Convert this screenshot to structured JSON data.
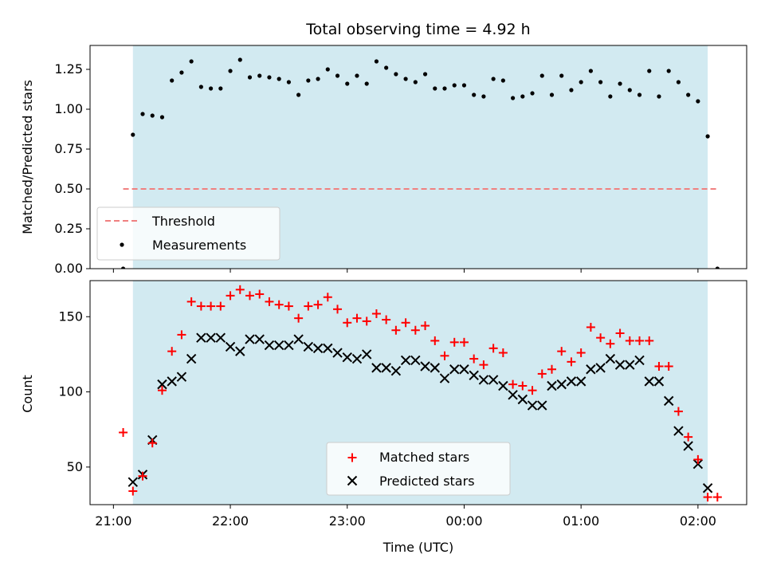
{
  "chart_data": [
    {
      "type": "scatter",
      "title": "Total observing time = 4.92 h",
      "xlabel": "",
      "ylabel": "Matched/Predicted stars",
      "ylim": [
        0,
        1.4
      ],
      "yticks": [
        "0.00",
        "0.25",
        "0.50",
        "0.75",
        "1.00",
        "1.25"
      ],
      "ytick_values": [
        0,
        0.25,
        0.5,
        0.75,
        1.0,
        1.25
      ],
      "xlim": [
        "20:48",
        "02:25"
      ],
      "shaded_span": [
        "21:10",
        "02:05"
      ],
      "shaded_color": "#add8e6",
      "legend_position": "lower-left",
      "series": [
        {
          "name": "Threshold",
          "kind": "dashed-line",
          "color": "#f08080",
          "x": [
            "21:05",
            "02:10"
          ],
          "y": [
            0.5,
            0.5
          ]
        },
        {
          "name": "Measurements",
          "kind": "dots",
          "color": "#000000",
          "x": [
            "21:05",
            "21:10",
            "21:15",
            "21:20",
            "21:25",
            "21:30",
            "21:35",
            "21:40",
            "21:45",
            "21:50",
            "21:55",
            "22:00",
            "22:05",
            "22:10",
            "22:15",
            "22:20",
            "22:25",
            "22:30",
            "22:35",
            "22:40",
            "22:45",
            "22:50",
            "22:55",
            "23:00",
            "23:05",
            "23:10",
            "23:15",
            "23:20",
            "23:25",
            "23:30",
            "23:35",
            "23:40",
            "23:45",
            "23:50",
            "23:55",
            "00:00",
            "00:05",
            "00:10",
            "00:15",
            "00:20",
            "00:25",
            "00:30",
            "00:35",
            "00:40",
            "00:45",
            "00:50",
            "00:55",
            "01:00",
            "01:05",
            "01:10",
            "01:15",
            "01:20",
            "01:25",
            "01:30",
            "01:35",
            "01:40",
            "01:45",
            "01:50",
            "01:55",
            "02:00",
            "02:05",
            "02:10"
          ],
          "y": [
            0.0,
            0.84,
            0.97,
            0.96,
            0.95,
            1.18,
            1.23,
            1.3,
            1.14,
            1.13,
            1.13,
            1.24,
            1.31,
            1.2,
            1.21,
            1.2,
            1.19,
            1.17,
            1.09,
            1.18,
            1.19,
            1.25,
            1.21,
            1.16,
            1.21,
            1.16,
            1.3,
            1.26,
            1.22,
            1.19,
            1.17,
            1.22,
            1.13,
            1.13,
            1.15,
            1.15,
            1.09,
            1.08,
            1.19,
            1.18,
            1.07,
            1.08,
            1.1,
            1.21,
            1.09,
            1.21,
            1.12,
            1.17,
            1.24,
            1.17,
            1.08,
            1.16,
            1.12,
            1.09,
            1.24,
            1.08,
            1.24,
            1.17,
            1.09,
            1.05,
            0.83,
            0.0
          ]
        }
      ]
    },
    {
      "type": "scatter",
      "title": "",
      "xlabel": "Time (UTC)",
      "ylabel": "Count",
      "ylim": [
        25,
        174
      ],
      "yticks": [
        "50",
        "100",
        "150"
      ],
      "ytick_values": [
        50,
        100,
        150
      ],
      "xlim": [
        "20:48",
        "02:25"
      ],
      "xticks": [
        "21:00",
        "22:00",
        "23:00",
        "00:00",
        "01:00",
        "02:00"
      ],
      "shaded_span": [
        "21:10",
        "02:05"
      ],
      "shaded_color": "#add8e6",
      "legend_position": "lower-center",
      "categories_time": [
        "21:05",
        "21:10",
        "21:15",
        "21:20",
        "21:25",
        "21:30",
        "21:35",
        "21:40",
        "21:45",
        "21:50",
        "21:55",
        "22:00",
        "22:05",
        "22:10",
        "22:15",
        "22:20",
        "22:25",
        "22:30",
        "22:35",
        "22:40",
        "22:45",
        "22:50",
        "22:55",
        "23:00",
        "23:05",
        "23:10",
        "23:15",
        "23:20",
        "23:25",
        "23:30",
        "23:35",
        "23:40",
        "23:45",
        "23:50",
        "23:55",
        "00:00",
        "00:05",
        "00:10",
        "00:15",
        "00:20",
        "00:25",
        "00:30",
        "00:35",
        "00:40",
        "00:45",
        "00:50",
        "00:55",
        "01:00",
        "01:05",
        "01:10",
        "01:15",
        "01:20",
        "01:25",
        "01:30",
        "01:35",
        "01:40",
        "01:45",
        "01:50",
        "01:55",
        "02:00",
        "02:05",
        "02:10"
      ],
      "series": [
        {
          "name": "Matched stars",
          "marker": "plus",
          "color": "#ff0000",
          "values": [
            73,
            34,
            44,
            66,
            101,
            127,
            138,
            160,
            157,
            157,
            157,
            164,
            168,
            164,
            165,
            160,
            158,
            157,
            149,
            157,
            158,
            163,
            155,
            146,
            149,
            147,
            152,
            148,
            141,
            146,
            141,
            144,
            134,
            124,
            133,
            133,
            122,
            118,
            129,
            126,
            105,
            104,
            101,
            112,
            115,
            127,
            120,
            126,
            143,
            136,
            132,
            139,
            134,
            134,
            134,
            117,
            117,
            87,
            70,
            55,
            30,
            30
          ]
        },
        {
          "name": "Predicted stars",
          "marker": "x",
          "color": "#000000",
          "values": [
            null,
            40,
            45,
            68,
            105,
            107,
            110,
            122,
            136,
            136,
            136,
            130,
            127,
            135,
            135,
            131,
            131,
            131,
            135,
            130,
            129,
            129,
            126,
            123,
            122,
            125,
            116,
            116,
            114,
            121,
            121,
            117,
            116,
            109,
            115,
            115,
            111,
            108,
            108,
            104,
            98,
            95,
            91,
            91,
            104,
            105,
            107,
            107,
            115,
            116,
            122,
            118,
            118,
            121,
            107,
            107,
            94,
            74,
            64,
            52,
            36,
            null
          ]
        }
      ]
    }
  ]
}
